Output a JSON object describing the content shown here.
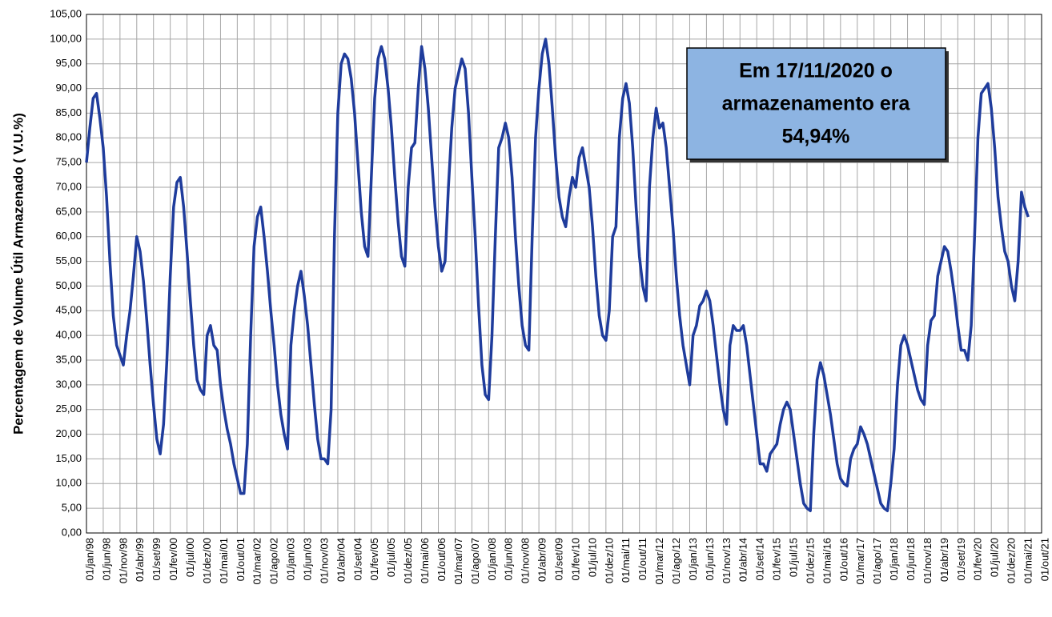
{
  "chart_data": {
    "type": "line",
    "ylabel": "Percentagem de Volume Útil Armazenado ( V.U.%)",
    "annotation": [
      "Em 17/11/2020 o",
      "armazenamento era",
      "54,94%"
    ],
    "x": [
      "01/jan/98",
      "01/fev/98",
      "01/mar/98",
      "01/abr/98",
      "01/mai/98",
      "01/jun/98",
      "01/jul/98",
      "01/ago/98",
      "01/set/98",
      "01/out/98",
      "01/nov/98",
      "01/dez/98",
      "01/jan/99",
      "01/fev/99",
      "01/mar/99",
      "01/abr/99",
      "01/mai/99",
      "01/jun/99",
      "01/jul/99",
      "01/ago/99",
      "01/set/99",
      "01/out/99",
      "01/nov/99",
      "01/dez/99",
      "01/jan/00",
      "01/fev/00",
      "01/mar/00",
      "01/abr/00",
      "01/mai/00",
      "01/jun/00",
      "01/jul/00",
      "01/ago/00",
      "01/set/00",
      "01/out/00",
      "01/nov/00",
      "01/dez/00",
      "01/jan/01",
      "01/fev/01",
      "01/mar/01",
      "01/abr/01",
      "01/mai/01",
      "01/jun/01",
      "01/jul/01",
      "01/ago/01",
      "01/set/01",
      "01/out/01",
      "01/nov/01",
      "01/dez/01",
      "01/jan/02",
      "01/fev/02",
      "01/mar/02",
      "01/abr/02",
      "01/mai/02",
      "01/jun/02",
      "01/jul/02",
      "01/ago/02",
      "01/set/02",
      "01/out/02",
      "01/nov/02",
      "01/dez/02",
      "01/jan/03",
      "01/fev/03",
      "01/mar/03",
      "01/abr/03",
      "01/mai/03",
      "01/jun/03",
      "01/jul/03",
      "01/ago/03",
      "01/set/03",
      "01/out/03",
      "01/nov/03",
      "01/dez/03",
      "01/jan/04",
      "01/fev/04",
      "01/mar/04",
      "01/abr/04",
      "01/mai/04",
      "01/jun/04",
      "01/jul/04",
      "01/ago/04",
      "01/set/04",
      "01/out/04",
      "01/nov/04",
      "01/dez/04",
      "01/jan/05",
      "01/fev/05",
      "01/mar/05",
      "01/abr/05",
      "01/mai/05",
      "01/jun/05",
      "01/jul/05",
      "01/ago/05",
      "01/set/05",
      "01/out/05",
      "01/nov/05",
      "01/dez/05",
      "01/jan/06",
      "01/fev/06",
      "01/mar/06",
      "01/abr/06",
      "01/mai/06",
      "01/jun/06",
      "01/jul/06",
      "01/ago/06",
      "01/set/06",
      "01/out/06",
      "01/nov/06",
      "01/dez/06",
      "01/jan/07",
      "01/fev/07",
      "01/mar/07",
      "01/abr/07",
      "01/mai/07",
      "01/jun/07",
      "01/jul/07",
      "01/ago/07",
      "01/set/07",
      "01/out/07",
      "01/nov/07",
      "01/dez/07",
      "01/jan/08",
      "01/fev/08",
      "01/mar/08",
      "01/abr/08",
      "01/mai/08",
      "01/jun/08",
      "01/jul/08",
      "01/ago/08",
      "01/set/08",
      "01/out/08",
      "01/nov/08",
      "01/dez/08",
      "01/jan/09",
      "01/fev/09",
      "01/mar/09",
      "01/abr/09",
      "01/mai/09",
      "01/jun/09",
      "01/jul/09",
      "01/ago/09",
      "01/set/09",
      "01/out/09",
      "01/nov/09",
      "01/dez/09",
      "01/jan/10",
      "01/fev/10",
      "01/mar/10",
      "01/abr/10",
      "01/mai/10",
      "01/jun/10",
      "01/jul/10",
      "01/ago/10",
      "01/set/10",
      "01/out/10",
      "01/nov/10",
      "01/dez/10",
      "01/jan/11",
      "01/fev/11",
      "01/mar/11",
      "01/abr/11",
      "01/mai/11",
      "01/jun/11",
      "01/jul/11",
      "01/ago/11",
      "01/set/11",
      "01/out/11",
      "01/nov/11",
      "01/dez/11",
      "01/jan/12",
      "01/fev/12",
      "01/mar/12",
      "01/abr/12",
      "01/mai/12",
      "01/jun/12",
      "01/jul/12",
      "01/ago/12",
      "01/set/12",
      "01/out/12",
      "01/nov/12",
      "01/dez/12",
      "01/jan/13",
      "01/fev/13",
      "01/mar/13",
      "01/abr/13",
      "01/mai/13",
      "01/jun/13",
      "01/jul/13",
      "01/ago/13",
      "01/set/13",
      "01/out/13",
      "01/nov/13",
      "01/dez/13",
      "01/jan/14",
      "01/fev/14",
      "01/mar/14",
      "01/abr/14",
      "01/mai/14",
      "01/jun/14",
      "01/jul/14",
      "01/ago/14",
      "01/set/14",
      "01/out/14",
      "01/nov/14",
      "01/dez/14",
      "01/jan/15",
      "01/fev/15",
      "01/mar/15",
      "01/abr/15",
      "01/mai/15",
      "01/jun/15",
      "01/jul/15",
      "01/ago/15",
      "01/set/15",
      "01/out/15",
      "01/nov/15",
      "01/dez/15",
      "01/jan/16",
      "01/fev/16",
      "01/mar/16",
      "01/abr/16",
      "01/mai/16",
      "01/jun/16",
      "01/jul/16",
      "01/ago/16",
      "01/set/16",
      "01/out/16",
      "01/nov/16",
      "01/dez/16",
      "01/jan/17",
      "01/fev/17",
      "01/mar/17",
      "01/abr/17",
      "01/mai/17",
      "01/jun/17",
      "01/jul/17",
      "01/ago/17",
      "01/set/17",
      "01/out/17",
      "01/nov/17",
      "01/dez/17",
      "01/jan/18",
      "01/fev/18",
      "01/mar/18",
      "01/abr/18",
      "01/mai/18",
      "01/jun/18",
      "01/jul/18",
      "01/ago/18",
      "01/set/18",
      "01/out/18",
      "01/nov/18",
      "01/dez/18",
      "01/jan/19",
      "01/fev/19",
      "01/mar/19",
      "01/abr/19",
      "01/mai/19",
      "01/jun/19",
      "01/jul/19",
      "01/ago/19",
      "01/set/19",
      "01/out/19",
      "01/nov/19",
      "01/dez/19",
      "01/jan/20",
      "01/fev/20",
      "01/mar/20",
      "01/abr/20",
      "01/mai/20",
      "01/jun/20",
      "01/jul/20",
      "01/ago/20",
      "01/set/20",
      "01/out/20",
      "01/nov/20",
      "01/dez/20",
      "01/jan/21",
      "01/fev/21",
      "01/mar/21",
      "01/abr/21",
      "01/mai/21",
      "01/jun/21"
    ],
    "series": [
      {
        "name": "V.U.%",
        "color": "#1f3c9c",
        "values": [
          75,
          82,
          88,
          89,
          84,
          78,
          68,
          55,
          44,
          38,
          36,
          34,
          40,
          45,
          52,
          60,
          57,
          51,
          43,
          34,
          26,
          19,
          16,
          22,
          35,
          52,
          66,
          71,
          72,
          66,
          57,
          47,
          38,
          31,
          29,
          28,
          40,
          42,
          38,
          37,
          30,
          25,
          21,
          18,
          14,
          11,
          8,
          8,
          18,
          40,
          58,
          64,
          66,
          60,
          53,
          45,
          38,
          30,
          24,
          20,
          17,
          38,
          45,
          50,
          53,
          48,
          42,
          34,
          26,
          19,
          15,
          15,
          14,
          25,
          60,
          85,
          95,
          97,
          96,
          92,
          85,
          75,
          65,
          58,
          56,
          72,
          88,
          96,
          98.5,
          96,
          90,
          82,
          72,
          63,
          56,
          54,
          70,
          78,
          79,
          90,
          98.5,
          94,
          86,
          76,
          66,
          58,
          53,
          55,
          70,
          82,
          90,
          93,
          96,
          94,
          85,
          72,
          60,
          46,
          34,
          28,
          27,
          40,
          60,
          78,
          80,
          83,
          80,
          72,
          60,
          50,
          42,
          38,
          37,
          60,
          80,
          90,
          97,
          100,
          95,
          86,
          76,
          68,
          64,
          62,
          68,
          72,
          70,
          76,
          78,
          74,
          70,
          62,
          52,
          44,
          40,
          39,
          45,
          60,
          62,
          80,
          88,
          91,
          87,
          78,
          66,
          56,
          50,
          47,
          70,
          80,
          86,
          82,
          83,
          78,
          70,
          62,
          52,
          44,
          38,
          34,
          30,
          40,
          42,
          46,
          47,
          49,
          47,
          42,
          36,
          30,
          25,
          22,
          38,
          42,
          41,
          41,
          42,
          38,
          32,
          26,
          20,
          14,
          14,
          12.5,
          16,
          17,
          18,
          22,
          25,
          26.5,
          25,
          20,
          15,
          10,
          6,
          5,
          4.5,
          20,
          31,
          34.5,
          32,
          28,
          24,
          19,
          14,
          11,
          10,
          9.5,
          15,
          17,
          18,
          21.5,
          20,
          18,
          15,
          12,
          9,
          6,
          5,
          4.5,
          10,
          17,
          30,
          38,
          40,
          38,
          35,
          32,
          29,
          27,
          26,
          38,
          43,
          44,
          52,
          55,
          58,
          57,
          53,
          48,
          42,
          37,
          37,
          35,
          42,
          60,
          80,
          89,
          90,
          91,
          86,
          78,
          68,
          62,
          57,
          55,
          50,
          47,
          55,
          69,
          66,
          64
        ]
      }
    ],
    "xticks": [
      "01/jan/98",
      "01/jun/98",
      "01/nov/98",
      "01/abr/99",
      "01/set/99",
      "01/fev/00",
      "01/jul/00",
      "01/dez/00",
      "01/mai/01",
      "01/out/01",
      "01/mar/02",
      "01/ago/02",
      "01/jan/03",
      "01/jun/03",
      "01/nov/03",
      "01/abr/04",
      "01/set/04",
      "01/fev/05",
      "01/jul/05",
      "01/dez/05",
      "01/mai/06",
      "01/out/06",
      "01/mar/07",
      "01/ago/07",
      "01/jan/08",
      "01/jun/08",
      "01/nov/08",
      "01/abr/09",
      "01/set/09",
      "01/fev/10",
      "01/jul/10",
      "01/dez/10",
      "01/mai/11",
      "01/out/11",
      "01/mar/12",
      "01/ago/12",
      "01/jan/13",
      "01/jun/13",
      "01/nov/13",
      "01/abr/14",
      "01/set/14",
      "01/fev/15",
      "01/jul/15",
      "01/dez/15",
      "01/mai/16",
      "01/out/16",
      "01/mar/17",
      "01/ago/17",
      "01/jan/18",
      "01/jun/18",
      "01/nov/18",
      "01/abr/19",
      "01/set/19",
      "01/fev/20",
      "01/jul/20",
      "01/dez/20",
      "01/mai/21",
      "01/out/21"
    ],
    "ylim": [
      0,
      105
    ],
    "yticks": [
      {
        "value": 0,
        "label": "0,00"
      },
      {
        "value": 5,
        "label": "5,00"
      },
      {
        "value": 10,
        "label": "10,00"
      },
      {
        "value": 15,
        "label": "15,00"
      },
      {
        "value": 20,
        "label": "20,00"
      },
      {
        "value": 25,
        "label": "25,00"
      },
      {
        "value": 30,
        "label": "30,00"
      },
      {
        "value": 35,
        "label": "35,00"
      },
      {
        "value": 40,
        "label": "40,00"
      },
      {
        "value": 45,
        "label": "45,00"
      },
      {
        "value": 50,
        "label": "50,00"
      },
      {
        "value": 55,
        "label": "55,00"
      },
      {
        "value": 60,
        "label": "60,00"
      },
      {
        "value": 65,
        "label": "65,00"
      },
      {
        "value": 70,
        "label": "70,00"
      },
      {
        "value": 75,
        "label": "75,00"
      },
      {
        "value": 80,
        "label": "80,00"
      },
      {
        "value": 85,
        "label": "85,00"
      },
      {
        "value": 90,
        "label": "90,00"
      },
      {
        "value": 95,
        "label": "95,00"
      },
      {
        "value": 100,
        "label": "100,00"
      },
      {
        "value": 105,
        "label": "105,00"
      }
    ],
    "grid": true
  }
}
